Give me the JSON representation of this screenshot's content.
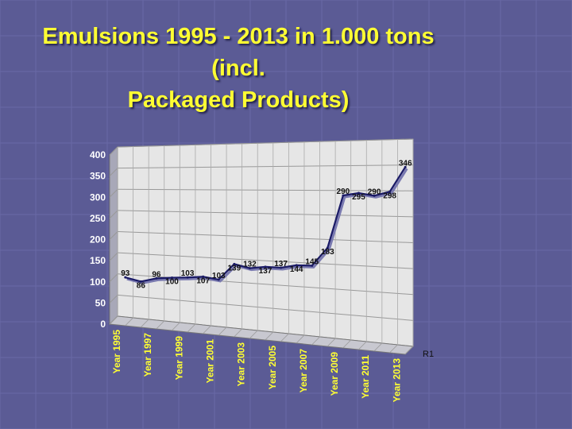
{
  "slide": {
    "title_line1": "Emulsions 1995 - 2013 in 1.000 tons (incl.",
    "title_line2": "Packaged Products)",
    "background_color": "#5b5b95",
    "title_color": "#ffff33"
  },
  "chart_data": {
    "type": "line",
    "title": "Emulsions 1995 - 2013 in 1.000 tons (incl. Packaged Products)",
    "x": [
      "1995",
      "1996",
      "1997",
      "1998",
      "1999",
      "2000",
      "2001",
      "2002",
      "2003",
      "2004",
      "2005",
      "2006",
      "2007",
      "2008",
      "2009",
      "2010",
      "2011",
      "2012",
      "2013"
    ],
    "tick_labels": [
      "Year 1995",
      "Year 1997",
      "Year 1999",
      "Year 2001",
      "Year 2003",
      "Year 2005",
      "Year 2007",
      "Year 2009",
      "Year 2011",
      "Year 2013"
    ],
    "series": [
      {
        "name": "R1",
        "values": [
          93,
          86,
          96,
          100,
          103,
          107,
          103,
          139,
          132,
          137,
          137,
          144,
          145,
          183,
          290,
          295,
          290,
          298,
          346
        ],
        "labels": [
          "93",
          "86",
          "96",
          "100",
          "103",
          "107",
          "103",
          "139",
          "132",
          "137",
          "137",
          "144",
          "145",
          "183",
          "290",
          "295",
          "290",
          "298",
          "346"
        ]
      }
    ],
    "y_ticks": [
      "0",
      "50",
      "100",
      "150",
      "200",
      "250",
      "300",
      "350",
      "400"
    ],
    "ylim": [
      0,
      400
    ],
    "grid": true,
    "legend": "bottom-right",
    "line_color": "#1a1a66",
    "wall_color": "#e6e6e6",
    "label_color": "#ffffff"
  }
}
